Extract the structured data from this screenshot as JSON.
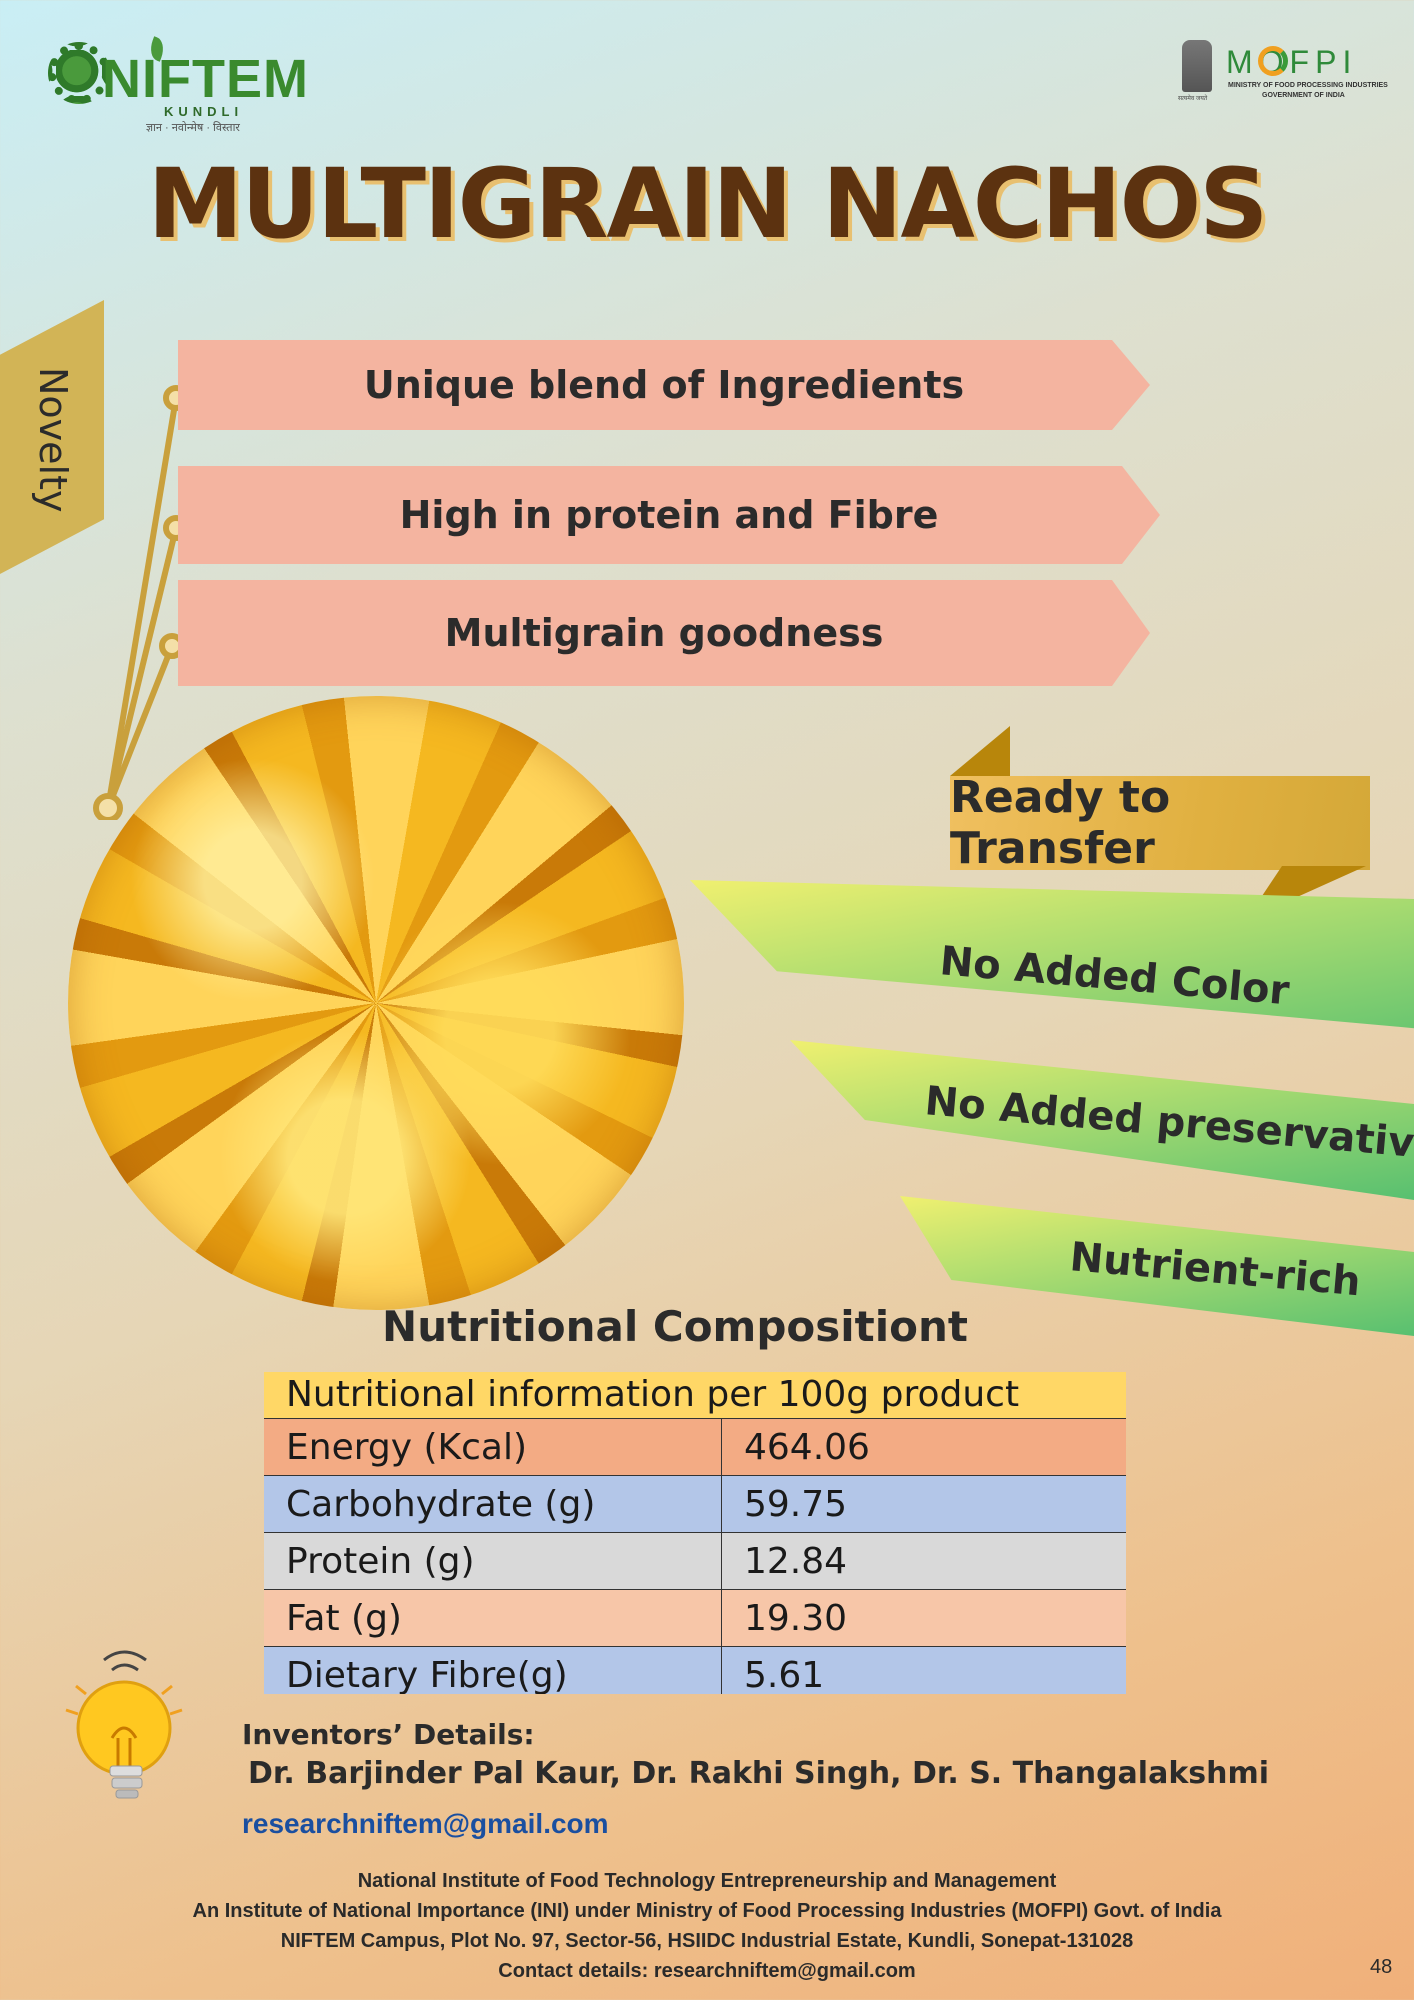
{
  "logos": {
    "niftem": {
      "word": "NIFTEM",
      "sub": "KUNDLI",
      "motto": "ज्ञान · नवोन्मेष · विस्तार"
    },
    "mofpi": {
      "word": "MOFPI",
      "line1": "MINISTRY OF FOOD PROCESSING INDUSTRIES",
      "line2": "GOVERNMENT OF INDIA",
      "emblem_caption": "सत्यमेव जयते"
    }
  },
  "title": "MULTIGRAIN NACHOS",
  "novelty": {
    "label": "Novelty",
    "items": [
      "Unique blend of  Ingredients",
      "High in protein and Fibre",
      "Multigrain goodness"
    ]
  },
  "ready_to_transfer": "Ready to Transfer",
  "highlights": [
    "No Added Color",
    "No Added preservatives",
    "Nutrient-rich"
  ],
  "nutrition": {
    "heading": "Nutritional Compositiont",
    "table_header": "Nutritional information per 100g product",
    "rows": [
      {
        "label": "Energy (Kcal)",
        "value": "464.06"
      },
      {
        "label": "Carbohydrate (g)",
        "value": "59.75"
      },
      {
        "label": "Protein (g)",
        "value": "12.84"
      },
      {
        "label": "Fat (g)",
        "value": "19.30"
      },
      {
        "label": "Dietary Fibre(g)",
        "value": "5.61"
      }
    ]
  },
  "inventors": {
    "title": "Inventors’ Details:",
    "names": "Dr. Barjinder Pal Kaur, Dr. Rakhi Singh, Dr. S. Thangalakshmi",
    "email": "researchniftem@gmail.com"
  },
  "footer": {
    "line1": "National Institute of Food Technology Entrepreneurship and Management",
    "line2": "An Institute of National Importance (INI) under Ministry of Food Processing Industries (MOFPI) Govt. of India",
    "line3": "NIFTEM Campus, Plot No. 97, Sector-56, HSIIDC Industrial Estate, Kundli, Sonepat-131028",
    "line4": "Contact details: researchniftem@gmail.com"
  },
  "page_number": "48",
  "colors": {
    "title": "#5c3210",
    "banner_pink": "#f4b4a0",
    "ribbon_gold": "#d2b456",
    "green_banner": "#58c070",
    "table_header_yellow": "#ffd766",
    "email_blue": "#1a4fa0"
  },
  "icons": [
    "niftem-logo",
    "mofpi-logo",
    "national-emblem-icon",
    "lightbulb-icon"
  ]
}
